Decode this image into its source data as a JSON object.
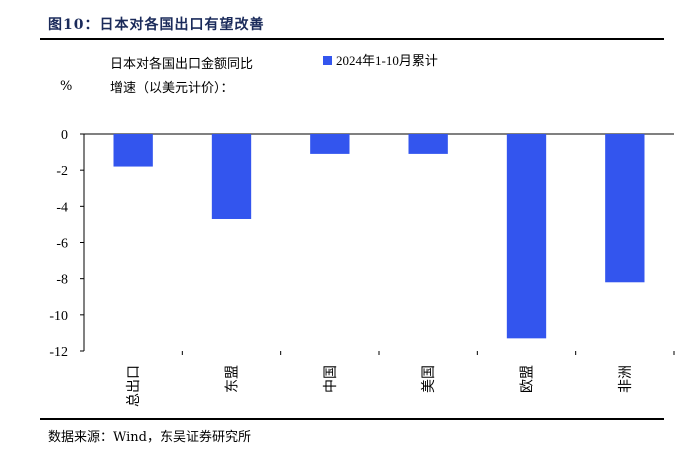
{
  "figure": {
    "title": "图10：日本对各国出口有望改善",
    "source": "数据来源：Wind，东吴证券研究所"
  },
  "chart_data": {
    "type": "bar",
    "title": "日本对各国出口金额同比增速（以美元计价）：",
    "title_lines": [
      "日本对各国出口金额同比",
      "增速（以美元计价）："
    ],
    "ylabel": "%",
    "xlabel": "",
    "ylim": [
      -12,
      0
    ],
    "yticks": [
      0,
      -2,
      -4,
      -6,
      -8,
      -10,
      -12
    ],
    "categories": [
      "总出口",
      "东盟",
      "中国",
      "美国",
      "欧盟",
      "非洲"
    ],
    "series": [
      {
        "name": "2024年1-10月累计",
        "color": "#3355ee",
        "values": [
          -1.8,
          -4.7,
          -1.1,
          -1.1,
          -11.3,
          -8.2
        ]
      }
    ],
    "legend_position": "top",
    "grid": false
  }
}
